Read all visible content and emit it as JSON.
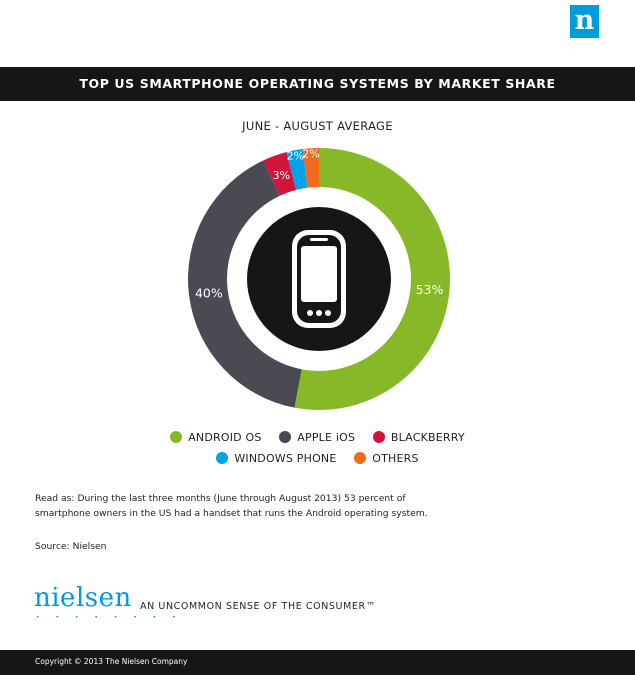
{
  "brand": {
    "logo_letter": "n",
    "wordmark": "nielsen",
    "wordmark_dots": "• • • • • • • •",
    "tagline": "AN UNCOMMON SENSE OF THE CONSUMER™",
    "accent_color": "#009bde"
  },
  "header": {
    "title": "TOP US SMARTPHONE OPERATING SYSTEMS BY MARKET SHARE"
  },
  "chart_data": {
    "type": "pie",
    "subtitle": "JUNE - AUGUST AVERAGE",
    "donut": true,
    "center_icon": "smartphone-icon",
    "categories": [
      "ANDROID OS",
      "APPLE iOS",
      "BLACKBERRY",
      "WINDOWS PHONE",
      "OTHERS"
    ],
    "values": [
      53,
      40,
      3,
      2,
      2
    ],
    "labels": [
      "53%",
      "40%",
      "3%",
      "2%",
      "2%"
    ],
    "colors": [
      "#86b827",
      "#4a4a52",
      "#d2143c",
      "#00a3e8",
      "#f26a1b"
    ],
    "legend_placement": "bottom"
  },
  "notes": {
    "read_as": "Read as: During the last three months (June through August 2013) 53 percent of smartphone owners in the US had a handset that runs the Android operating system.",
    "source": "Source: Nielsen"
  },
  "footer": {
    "copyright": "Copyright © 2013 The Nielsen Company"
  }
}
